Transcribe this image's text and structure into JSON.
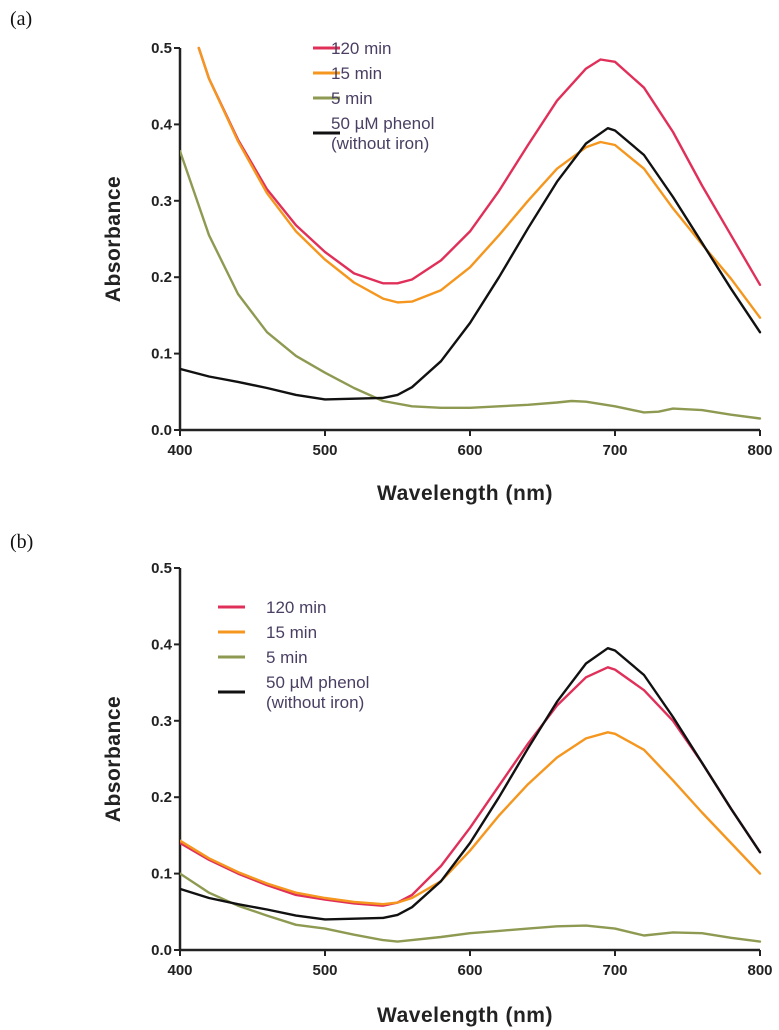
{
  "chart_data": [
    {
      "panel_label": "(a)",
      "type": "line",
      "xlabel": "Wavelength (nm)",
      "ylabel": "Absorbance",
      "xlim": [
        400,
        800
      ],
      "ylim": [
        0,
        0.5
      ],
      "xticks": [
        400,
        500,
        600,
        700,
        800
      ],
      "yticks": [
        0.0,
        0.1,
        0.2,
        0.3,
        0.4,
        0.5
      ],
      "ytick_labels": [
        "0.0",
        "0.1",
        "0.2",
        "0.3",
        "0.4",
        "0.5"
      ],
      "grid": false,
      "legend": "top-center",
      "series": [
        {
          "name": "120 min",
          "color": "#e0305a",
          "x": [
            413,
            420,
            440,
            460,
            480,
            500,
            520,
            540,
            550,
            560,
            580,
            600,
            620,
            640,
            660,
            680,
            690,
            700,
            720,
            740,
            760,
            780,
            800
          ],
          "y": [
            0.5,
            0.46,
            0.38,
            0.315,
            0.268,
            0.233,
            0.205,
            0.192,
            0.192,
            0.197,
            0.222,
            0.26,
            0.313,
            0.373,
            0.431,
            0.473,
            0.485,
            0.482,
            0.448,
            0.39,
            0.32,
            0.255,
            0.19
          ]
        },
        {
          "name": "15 min",
          "color": "#f5961e",
          "x": [
            413,
            420,
            440,
            460,
            480,
            500,
            520,
            540,
            550,
            560,
            580,
            600,
            620,
            640,
            660,
            680,
            690,
            700,
            720,
            740,
            760,
            780,
            800
          ],
          "y": [
            0.5,
            0.46,
            0.378,
            0.31,
            0.26,
            0.223,
            0.193,
            0.172,
            0.167,
            0.168,
            0.183,
            0.213,
            0.255,
            0.3,
            0.342,
            0.37,
            0.377,
            0.373,
            0.342,
            0.29,
            0.243,
            0.198,
            0.147
          ]
        },
        {
          "name": "5 min",
          "color": "#8e9a52",
          "x": [
            400,
            420,
            440,
            460,
            480,
            500,
            520,
            540,
            560,
            580,
            600,
            620,
            640,
            660,
            670,
            680,
            700,
            720,
            730,
            740,
            760,
            780,
            800
          ],
          "y": [
            0.365,
            0.255,
            0.178,
            0.128,
            0.097,
            0.075,
            0.055,
            0.038,
            0.031,
            0.029,
            0.029,
            0.031,
            0.033,
            0.036,
            0.038,
            0.037,
            0.031,
            0.023,
            0.024,
            0.028,
            0.026,
            0.02,
            0.015
          ]
        },
        {
          "name": "50 µM phenol\n(without iron)",
          "color": "#111111",
          "x": [
            400,
            420,
            440,
            460,
            480,
            500,
            520,
            540,
            550,
            560,
            580,
            600,
            620,
            640,
            660,
            680,
            695,
            700,
            720,
            740,
            760,
            780,
            800
          ],
          "y": [
            0.08,
            0.07,
            0.063,
            0.055,
            0.046,
            0.04,
            0.041,
            0.042,
            0.046,
            0.056,
            0.09,
            0.14,
            0.2,
            0.264,
            0.325,
            0.375,
            0.395,
            0.392,
            0.36,
            0.305,
            0.245,
            0.185,
            0.128
          ]
        }
      ]
    },
    {
      "panel_label": "(b)",
      "type": "line",
      "xlabel": "Wavelength (nm)",
      "ylabel": "Absorbance",
      "xlim": [
        400,
        800
      ],
      "ylim": [
        0,
        0.5
      ],
      "xticks": [
        400,
        500,
        600,
        700,
        800
      ],
      "yticks": [
        0.0,
        0.1,
        0.2,
        0.3,
        0.4,
        0.5
      ],
      "ytick_labels": [
        "0.0",
        "0.1",
        "0.2",
        "0.3",
        "0.4",
        "0.5"
      ],
      "grid": false,
      "legend": "top-left",
      "series": [
        {
          "name": "120 min",
          "color": "#e0305a",
          "x": [
            400,
            420,
            440,
            460,
            480,
            500,
            520,
            540,
            550,
            560,
            580,
            600,
            620,
            640,
            660,
            680,
            695,
            700,
            720,
            740,
            760,
            780,
            800
          ],
          "y": [
            0.14,
            0.118,
            0.1,
            0.085,
            0.072,
            0.066,
            0.061,
            0.058,
            0.062,
            0.072,
            0.11,
            0.16,
            0.215,
            0.27,
            0.32,
            0.357,
            0.37,
            0.367,
            0.34,
            0.3,
            0.245,
            0.185,
            0.128
          ]
        },
        {
          "name": "15 min",
          "color": "#f5961e",
          "x": [
            400,
            420,
            440,
            460,
            480,
            500,
            520,
            540,
            550,
            560,
            580,
            600,
            620,
            640,
            660,
            680,
            695,
            700,
            720,
            740,
            760,
            780,
            800
          ],
          "y": [
            0.143,
            0.12,
            0.102,
            0.087,
            0.075,
            0.068,
            0.063,
            0.06,
            0.062,
            0.068,
            0.09,
            0.13,
            0.176,
            0.217,
            0.252,
            0.277,
            0.285,
            0.283,
            0.262,
            0.222,
            0.18,
            0.14,
            0.1
          ]
        },
        {
          "name": "5 min",
          "color": "#8e9a52",
          "x": [
            400,
            420,
            440,
            460,
            480,
            500,
            520,
            540,
            550,
            560,
            580,
            600,
            620,
            640,
            660,
            680,
            700,
            720,
            740,
            760,
            780,
            800
          ],
          "y": [
            0.1,
            0.075,
            0.058,
            0.045,
            0.033,
            0.028,
            0.02,
            0.013,
            0.011,
            0.013,
            0.017,
            0.022,
            0.025,
            0.028,
            0.031,
            0.032,
            0.028,
            0.019,
            0.023,
            0.022,
            0.016,
            0.011
          ]
        },
        {
          "name": "50 µM phenol\n(without iron)",
          "color": "#111111",
          "x": [
            400,
            420,
            440,
            460,
            480,
            500,
            520,
            540,
            550,
            560,
            580,
            600,
            620,
            640,
            660,
            680,
            695,
            700,
            720,
            740,
            760,
            780,
            800
          ],
          "y": [
            0.08,
            0.068,
            0.06,
            0.053,
            0.045,
            0.04,
            0.041,
            0.042,
            0.046,
            0.056,
            0.09,
            0.14,
            0.2,
            0.264,
            0.325,
            0.375,
            0.395,
            0.392,
            0.36,
            0.305,
            0.245,
            0.185,
            0.128
          ]
        }
      ]
    }
  ]
}
